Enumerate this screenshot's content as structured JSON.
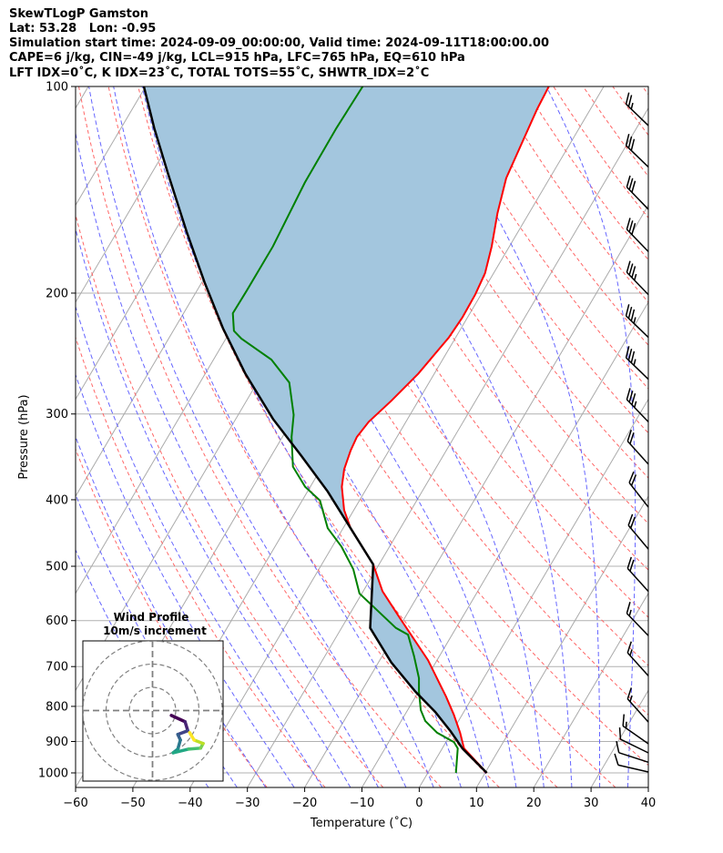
{
  "header": {
    "title": "SkewTLogP Gamston",
    "location": "Lat: 53.28   Lon: -0.95",
    "times": "Simulation start time: 2024-09-09_00:00:00, Valid time: 2024-09-11T18:00:00.00",
    "indices_1": "CAPE=6 j/kg, CIN=-49 j/kg, LCL=915 hPa, LFC=765 hPa, EQ=610 hPa",
    "indices_2": "LFT IDX=0˚C, K IDX=23˚C, TOTAL TOTS=55˚C, SHWTR_IDX=2˚C"
  },
  "chart_data": {
    "type": "line",
    "subtype": "skew-t log-p",
    "title": "SkewTLogP Gamston",
    "xlabel": "Temperature (˚C)",
    "ylabel": "Pressure (hPa)",
    "xlim": [
      -60,
      40
    ],
    "ylim": [
      1050,
      100
    ],
    "grid": true,
    "xticks": [
      -60,
      -50,
      -40,
      -30,
      -20,
      -10,
      0,
      10,
      20,
      30,
      40
    ],
    "xtick_labels": [
      "−60",
      "−50",
      "−40",
      "−30",
      "−20",
      "−10",
      "0",
      "10",
      "20",
      "30",
      "40"
    ],
    "yticks": [
      100,
      200,
      300,
      400,
      500,
      600,
      700,
      800,
      900,
      1000
    ],
    "ytick_labels": [
      "100",
      "200",
      "300",
      "400",
      "500",
      "600",
      "700",
      "800",
      "900",
      "1000"
    ],
    "colors": {
      "temperature": "#ff0000",
      "dewpoint": "#008000",
      "parcel": "#000000",
      "cape_fill": "#a3c6de",
      "dry_adiabat": "#ff6666",
      "moist_adiabat": "#6666ff",
      "isotherm": "#aaaaaa"
    },
    "series": [
      {
        "name": "Temperature",
        "points_p_T": [
          [
            1000,
            10.3
          ],
          [
            921,
            3.8
          ],
          [
            874,
            1.5
          ],
          [
            822,
            -1.5
          ],
          [
            774,
            -4.7
          ],
          [
            685,
            -11.6
          ],
          [
            597,
            -20.6
          ],
          [
            544,
            -26.6
          ],
          [
            497,
            -31
          ],
          [
            440,
            -38.7
          ],
          [
            414,
            -41.7
          ],
          [
            383,
            -44.5
          ],
          [
            361,
            -45.9
          ],
          [
            339,
            -46.7
          ],
          [
            324,
            -47
          ],
          [
            308,
            -46.5
          ],
          [
            287,
            -44.7
          ],
          [
            262,
            -42.8
          ],
          [
            232,
            -41.2
          ],
          [
            217,
            -40.9
          ],
          [
            201,
            -41
          ],
          [
            187,
            -41.5
          ],
          [
            171,
            -43.1
          ],
          [
            153,
            -45.5
          ],
          [
            136,
            -47.6
          ],
          [
            122,
            -48.4
          ],
          [
            108,
            -49.3
          ],
          [
            100,
            -49.6
          ]
        ]
      },
      {
        "name": "Dewpoint",
        "points_p_T": [
          [
            1000,
            4.9
          ],
          [
            921,
            2.7
          ],
          [
            902,
            1.4
          ],
          [
            874,
            -2.5
          ],
          [
            840,
            -5.8
          ],
          [
            810,
            -7.7
          ],
          [
            762,
            -9.9
          ],
          [
            728,
            -11.3
          ],
          [
            675,
            -14.5
          ],
          [
            629,
            -17.7
          ],
          [
            615,
            -20.5
          ],
          [
            548,
            -30.4
          ],
          [
            505,
            -34
          ],
          [
            468,
            -38.4
          ],
          [
            440,
            -42.7
          ],
          [
            401,
            -46.9
          ],
          [
            383,
            -50.9
          ],
          [
            358,
            -55.1
          ],
          [
            324,
            -58.4
          ],
          [
            301,
            -60.3
          ],
          [
            270,
            -64.4
          ],
          [
            250,
            -69.9
          ],
          [
            233,
            -77.3
          ],
          [
            227,
            -79.4
          ],
          [
            214,
            -81.4
          ],
          [
            198,
            -81.3
          ],
          [
            171,
            -81.3
          ],
          [
            138,
            -82.3
          ],
          [
            115,
            -82.4
          ],
          [
            100,
            -82.1
          ]
        ]
      },
      {
        "name": "Parcel profile",
        "points_p_T": [
          [
            1000,
            10.3
          ],
          [
            921,
            3.5
          ],
          [
            870,
            -0.3
          ],
          [
            815,
            -5
          ],
          [
            760,
            -10.7
          ],
          [
            690,
            -17.8
          ],
          [
            615,
            -25
          ],
          [
            497,
            -31
          ],
          [
            440,
            -38.7
          ],
          [
            389,
            -46.5
          ],
          [
            344,
            -55
          ],
          [
            305,
            -63.5
          ],
          [
            262,
            -73
          ],
          [
            225,
            -81.6
          ],
          [
            193,
            -89.5
          ],
          [
            163,
            -97.8
          ],
          [
            134,
            -107.1
          ],
          [
            115,
            -114.2
          ],
          [
            100,
            -120.3
          ]
        ]
      }
    ],
    "wind_barbs": [
      {
        "p": 114,
        "speed_kt": 25,
        "dir_deg": 314
      },
      {
        "p": 131,
        "speed_kt": 30,
        "dir_deg": 314
      },
      {
        "p": 151,
        "speed_kt": 30,
        "dir_deg": 316
      },
      {
        "p": 174,
        "speed_kt": 30,
        "dir_deg": 316
      },
      {
        "p": 201,
        "speed_kt": 35,
        "dir_deg": 316
      },
      {
        "p": 232,
        "speed_kt": 35,
        "dir_deg": 314
      },
      {
        "p": 267,
        "speed_kt": 35,
        "dir_deg": 314
      },
      {
        "p": 308,
        "speed_kt": 35,
        "dir_deg": 316
      },
      {
        "p": 355,
        "speed_kt": 20,
        "dir_deg": 318
      },
      {
        "p": 410,
        "speed_kt": 20,
        "dir_deg": 322
      },
      {
        "p": 472,
        "speed_kt": 20,
        "dir_deg": 320
      },
      {
        "p": 544,
        "speed_kt": 20,
        "dir_deg": 318
      },
      {
        "p": 631,
        "speed_kt": 15,
        "dir_deg": 316
      },
      {
        "p": 722,
        "speed_kt": 15,
        "dir_deg": 318
      },
      {
        "p": 843,
        "speed_kt": 15,
        "dir_deg": 318
      },
      {
        "p": 907,
        "speed_kt": 15,
        "dir_deg": 305
      },
      {
        "p": 935,
        "speed_kt": 10,
        "dir_deg": 296
      },
      {
        "p": 965,
        "speed_kt": 10,
        "dir_deg": 288
      },
      {
        "p": 997,
        "speed_kt": 10,
        "dir_deg": 283
      }
    ],
    "hodograph": {
      "title": "Wind Profile",
      "subtitle": "10m/s increment",
      "rings_ms": [
        10,
        20,
        30
      ],
      "points_u_v_ms": [
        [
          8.1,
          -2.1
        ],
        [
          14,
          -4.8
        ],
        [
          15.2,
          -8.7
        ],
        [
          10.9,
          -10.3
        ],
        [
          12,
          -12.7
        ],
        [
          10.9,
          -16.6
        ],
        [
          8.9,
          -18.2
        ],
        [
          15.6,
          -16.6
        ],
        [
          20.7,
          -16.2
        ],
        [
          21.8,
          -14.2
        ],
        [
          17.9,
          -12.7
        ],
        [
          16,
          -9.5
        ]
      ]
    }
  }
}
